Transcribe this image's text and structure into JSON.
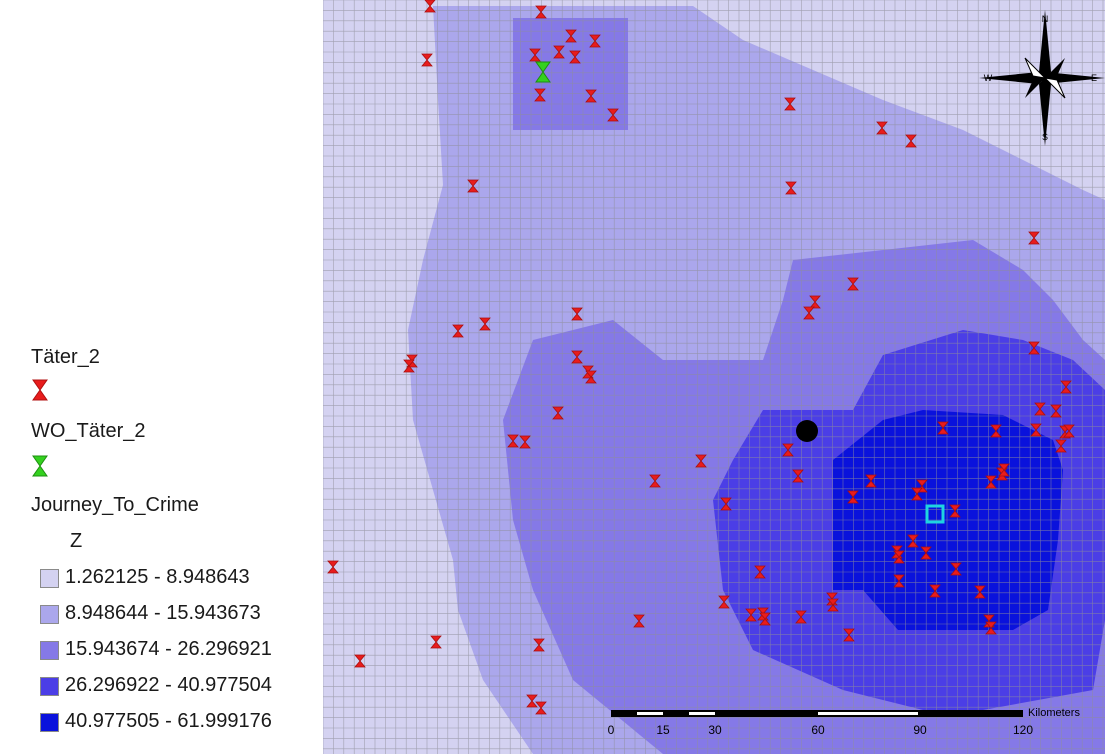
{
  "legend": {
    "offender_layer": "Täter_2",
    "home_layer": "WO_Täter_2",
    "surface_layer": "Journey_To_Crime",
    "surface_field": "Z",
    "classes": [
      {
        "label": "1.262125 - 8.948643",
        "color": "#d4d2f1"
      },
      {
        "label": "8.948644 - 15.943673",
        "color": "#aba7ec"
      },
      {
        "label": "15.943674 - 26.296921",
        "color": "#8579e7"
      },
      {
        "label": "26.296922 - 40.977504",
        "color": "#4b3ee6"
      },
      {
        "label": "40.977505 - 61.999176",
        "color": "#0a12dc"
      }
    ]
  },
  "scalebar": {
    "unit": "Kilometers",
    "ticks": [
      "0",
      "15",
      "30",
      "60",
      "90",
      "120"
    ]
  },
  "north_arrow": {
    "letters": {
      "n": "N",
      "s": "S",
      "e": "E",
      "w": "W"
    }
  },
  "colors": {
    "offender_marker": "#e81c1c",
    "home_marker": "#34d11f",
    "grid_line": "#8f8f9a",
    "centroid": "#000000",
    "estimated_home": "#1fd3e0"
  }
}
